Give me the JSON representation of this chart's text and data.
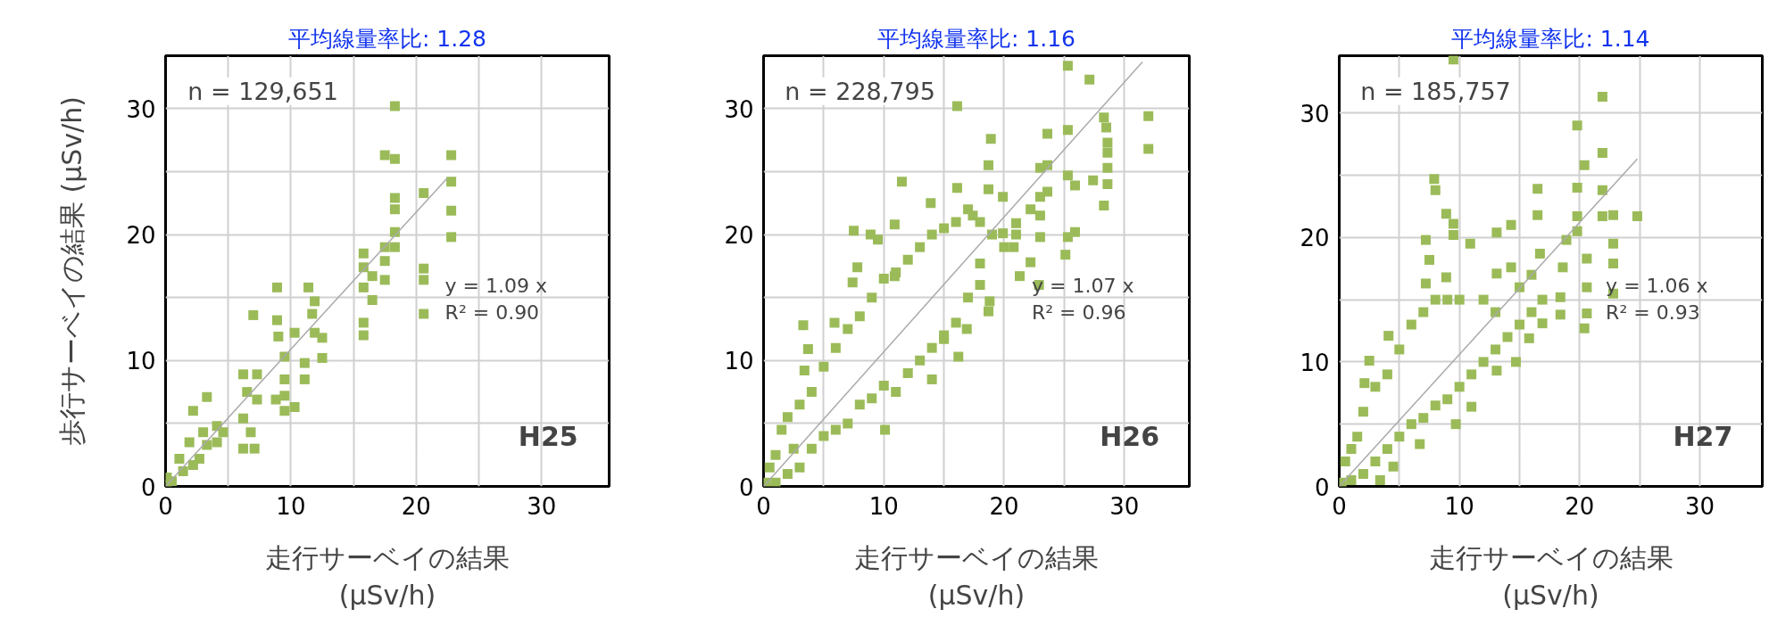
{
  "chart_data": [
    {
      "type": "scatter",
      "title": "平均線量率比: 1.28",
      "xlabel": "走行サーベイの結果\n(μSv/h)",
      "ylabel": "歩行サーベイの結果 (μSv/h)",
      "xlim": [
        0,
        35.4
      ],
      "ylim": [
        0,
        34.2
      ],
      "xticks": [
        0,
        {
          "value": 5,
          "label": null
        },
        10,
        {
          "value": 15,
          "label": null
        },
        20,
        {
          "value": 25,
          "label": null
        },
        30
      ],
      "yticks": [
        0,
        {
          "value": 5,
          "label": null
        },
        10,
        {
          "value": 15,
          "label": null
        },
        20,
        {
          "value": 25,
          "label": null
        },
        30
      ],
      "grid": true,
      "annotations": [
        "n = 129,651",
        "y = 1.09 x",
        "R² = 0.90",
        "H25"
      ],
      "series": [
        {
          "marker": "square",
          "color": "#9bbb59",
          "x": [
            18.3,
            17.5,
            18.3,
            22.8,
            22.8,
            20.6,
            18.3,
            18.3,
            22.8,
            18.3,
            22.8,
            18.3,
            17.5,
            15.8,
            17.5,
            15.8,
            20.6,
            20.6,
            17.5,
            16.5,
            15.8,
            16.5,
            20.6,
            15.8,
            15.8,
            8.9,
            11.4,
            11.9,
            7.0,
            8.9,
            9.0,
            11.7,
            11.9,
            12.5,
            10.3,
            12.5,
            9.5,
            11.1,
            9.5,
            11.1,
            9.5,
            10.3,
            9.5,
            8.8,
            6.2,
            7.3,
            6.5,
            7.3,
            6.2,
            6.8,
            6.2,
            7.1,
            3.3,
            2.2,
            4.1,
            4.6,
            3.3,
            1.9,
            2.7,
            1.1,
            1.4,
            0.1,
            0.5,
            2.2,
            0.1,
            4.1,
            3.0
          ],
          "values": [
            30.2,
            26.3,
            26.0,
            26.3,
            24.2,
            23.3,
            22.9,
            22.0,
            21.9,
            20.2,
            19.8,
            19.0,
            19.0,
            18.5,
            17.9,
            17.4,
            17.3,
            16.4,
            16.4,
            16.7,
            15.8,
            14.8,
            13.7,
            13.0,
            12.0,
            15.8,
            15.8,
            14.7,
            13.6,
            13.2,
            11.9,
            13.7,
            12.2,
            11.8,
            12.2,
            10.2,
            10.3,
            9.8,
            8.5,
            8.5,
            7.2,
            6.3,
            6.0,
            6.9,
            8.9,
            8.9,
            7.5,
            6.9,
            5.4,
            4.3,
            3.0,
            3.0,
            7.1,
            6.0,
            4.8,
            4.3,
            3.3,
            3.5,
            2.2,
            2.2,
            1.2,
            0.7,
            0.4,
            1.7,
            0.1,
            3.5,
            4.3
          ]
        },
        {
          "type": "line",
          "color": "#aaaaaa",
          "x": [
            0,
            22.5
          ],
          "values": [
            0,
            24.5
          ]
        }
      ]
    },
    {
      "type": "scatter",
      "title": "平均線量率比: 1.16",
      "xlabel": "走行サーベイの結果\n(μSv/h)",
      "xlim": [
        0,
        35.4
      ],
      "ylim": [
        0,
        34.2
      ],
      "xticks": [
        0,
        {
          "value": 5,
          "label": null
        },
        10,
        {
          "value": 15,
          "label": null
        },
        20,
        {
          "value": 25,
          "label": null
        },
        30
      ],
      "yticks": [
        0,
        {
          "value": 5,
          "label": null
        },
        10,
        {
          "value": 15,
          "label": null
        },
        20,
        {
          "value": 25,
          "label": null
        },
        30
      ],
      "grid": true,
      "annotations": [
        "n = 228,795",
        "y = 1.07 x",
        "R² = 0.96",
        "H26"
      ],
      "series": [
        {
          "marker": "square",
          "color": "#9bbb59",
          "x": [
            25.3,
            27.1,
            16.1,
            32.0,
            32.0,
            28.3,
            28.5,
            28.6,
            28.6,
            28.6,
            28.6,
            28.3,
            27.4,
            25.3,
            23.6,
            23.6,
            23.0,
            25.3,
            25.9,
            23.6,
            23.0,
            22.2,
            23.0,
            23.0,
            25.3,
            25.9,
            25.1,
            22.2,
            21.3,
            22.9,
            18.9,
            18.7,
            18.7,
            19.9,
            16.1,
            13.9,
            11.5,
            10.9,
            7.5,
            8.9,
            9.5,
            7.8,
            7.4,
            10.9,
            3.3,
            5.9,
            3.7,
            3.4,
            10.1,
            14.0,
            16.2,
            15.0,
            16.9,
            18.7,
            18.8,
            18.0,
            20.8,
            21.0,
            19.9,
            17.4,
            0.2,
            0.5,
            1,
            1,
            1.5,
            2,
            2,
            2.5,
            3,
            3,
            4,
            4,
            5,
            5,
            6,
            6,
            7,
            7,
            8,
            8,
            9,
            9,
            10,
            10,
            11,
            11,
            12,
            12,
            13,
            13,
            14,
            14,
            15,
            15,
            16,
            16,
            17,
            17,
            18,
            18,
            19,
            20,
            21
          ],
          "values": [
            33.4,
            32.3,
            30.2,
            29.4,
            26.8,
            29.3,
            28.5,
            27.3,
            26.5,
            25.3,
            24.0,
            22.3,
            24.3,
            28.3,
            28.0,
            25.5,
            25.3,
            24.7,
            23.9,
            23.4,
            23.0,
            22.0,
            21.5,
            19.8,
            19.8,
            20.2,
            18.4,
            17.8,
            16.7,
            16.0,
            27.6,
            25.5,
            23.6,
            23.0,
            23.7,
            22.5,
            24.2,
            20.8,
            20.3,
            20.0,
            19.6,
            17.4,
            16.2,
            16.7,
            12.8,
            13.0,
            10.9,
            9.2,
            4.5,
            8.5,
            10.3,
            11.7,
            12.5,
            13.9,
            14.7,
            17.7,
            19.0,
            20.9,
            20.1,
            21.5,
            0.3,
            1.5,
            0.3,
            2.5,
            4.5,
            1,
            5.5,
            3,
            6.5,
            1.5,
            7.5,
            3,
            9.5,
            4,
            11,
            4.5,
            12.5,
            5,
            13.5,
            6.5,
            15,
            7,
            16.5,
            8,
            17,
            7.5,
            18,
            9,
            19,
            10,
            20,
            11,
            20.5,
            12,
            21,
            13,
            22,
            15,
            21,
            16,
            20,
            19,
            20
          ]
        },
        {
          "type": "line",
          "color": "#aaaaaa",
          "x": [
            0,
            31.5
          ],
          "values": [
            0,
            33.7
          ]
        }
      ]
    },
    {
      "type": "scatter",
      "title": "平均線量率比: 1.14",
      "xlabel": "走行サーベイの結果\n(μSv/h)",
      "xlim": [
        0,
        35.2
      ],
      "ylim": [
        0,
        34.6
      ],
      "xticks": [
        0,
        {
          "value": 5,
          "label": null
        },
        10,
        {
          "value": 15,
          "label": null
        },
        20,
        {
          "value": 25,
          "label": null
        },
        30
      ],
      "yticks": [
        0,
        {
          "value": 5,
          "label": null
        },
        10,
        {
          "value": 15,
          "label": null
        },
        20,
        {
          "value": 25,
          "label": null
        },
        30
      ],
      "grid": true,
      "annotations": [
        "n = 185,757",
        "y = 1.06 x",
        "R² = 0.93",
        "H27"
      ],
      "series": [
        {
          "marker": "square",
          "color": "#9bbb59",
          "x": [
            9.5,
            21.9,
            19.8,
            21.9,
            20.4,
            7.9,
            8.0,
            16.5,
            19.8,
            21.9,
            21.9,
            22.8,
            24.8,
            8.9,
            9.5,
            9.5,
            7.2,
            10.9,
            13.1,
            14.3,
            16.5,
            19.8,
            19.8,
            22.8,
            22.8,
            22.8,
            20.6,
            20.6,
            20.6,
            20.4,
            18.4,
            18.4,
            18.6,
            18.9,
            7.5,
            7.2,
            8.9,
            13.1,
            14.3,
            16.7,
            16.9,
            16.9,
            15.8,
            14.7,
            13.1,
            4.1,
            2.5,
            2.1,
            3.4,
            11.0,
            9.7,
            6.7,
            4.5,
            0.2,
            0.5,
            1,
            1,
            1.5,
            2,
            2,
            3,
            3,
            4,
            4,
            5,
            5,
            6,
            6,
            7,
            7,
            8,
            8,
            9,
            9,
            10,
            10,
            11,
            12,
            12,
            13,
            13,
            14,
            15,
            15,
            16,
            16
          ],
          "values": [
            34.3,
            31.3,
            29.0,
            26.8,
            25.8,
            24.7,
            23.8,
            23.9,
            24.0,
            23.8,
            21.7,
            21.8,
            21.7,
            21.9,
            21.1,
            20.2,
            19.8,
            19.5,
            20.4,
            21.0,
            21.8,
            21.7,
            20.5,
            19.5,
            17.9,
            15.5,
            18.3,
            16.0,
            13.9,
            12.7,
            15.2,
            13.8,
            17.6,
            19.8,
            18.2,
            16.3,
            16.8,
            17.1,
            17.6,
            18.7,
            15.0,
            13.1,
            11.9,
            10.0,
            9.3,
            12.1,
            10.1,
            8.3,
            0.5,
            6.4,
            5.0,
            3.4,
            1.6,
            0.3,
            2,
            0.5,
            3,
            4,
            1,
            6,
            2,
            8,
            3,
            9,
            4,
            11,
            5,
            13,
            5.5,
            14,
            6.5,
            15,
            7,
            15,
            8,
            15,
            9,
            10,
            15,
            11,
            14,
            12,
            13,
            16,
            14,
            17
          ]
        },
        {
          "type": "line",
          "color": "#aaaaaa",
          "x": [
            0,
            24.8
          ],
          "values": [
            0,
            26.3
          ]
        }
      ]
    }
  ]
}
